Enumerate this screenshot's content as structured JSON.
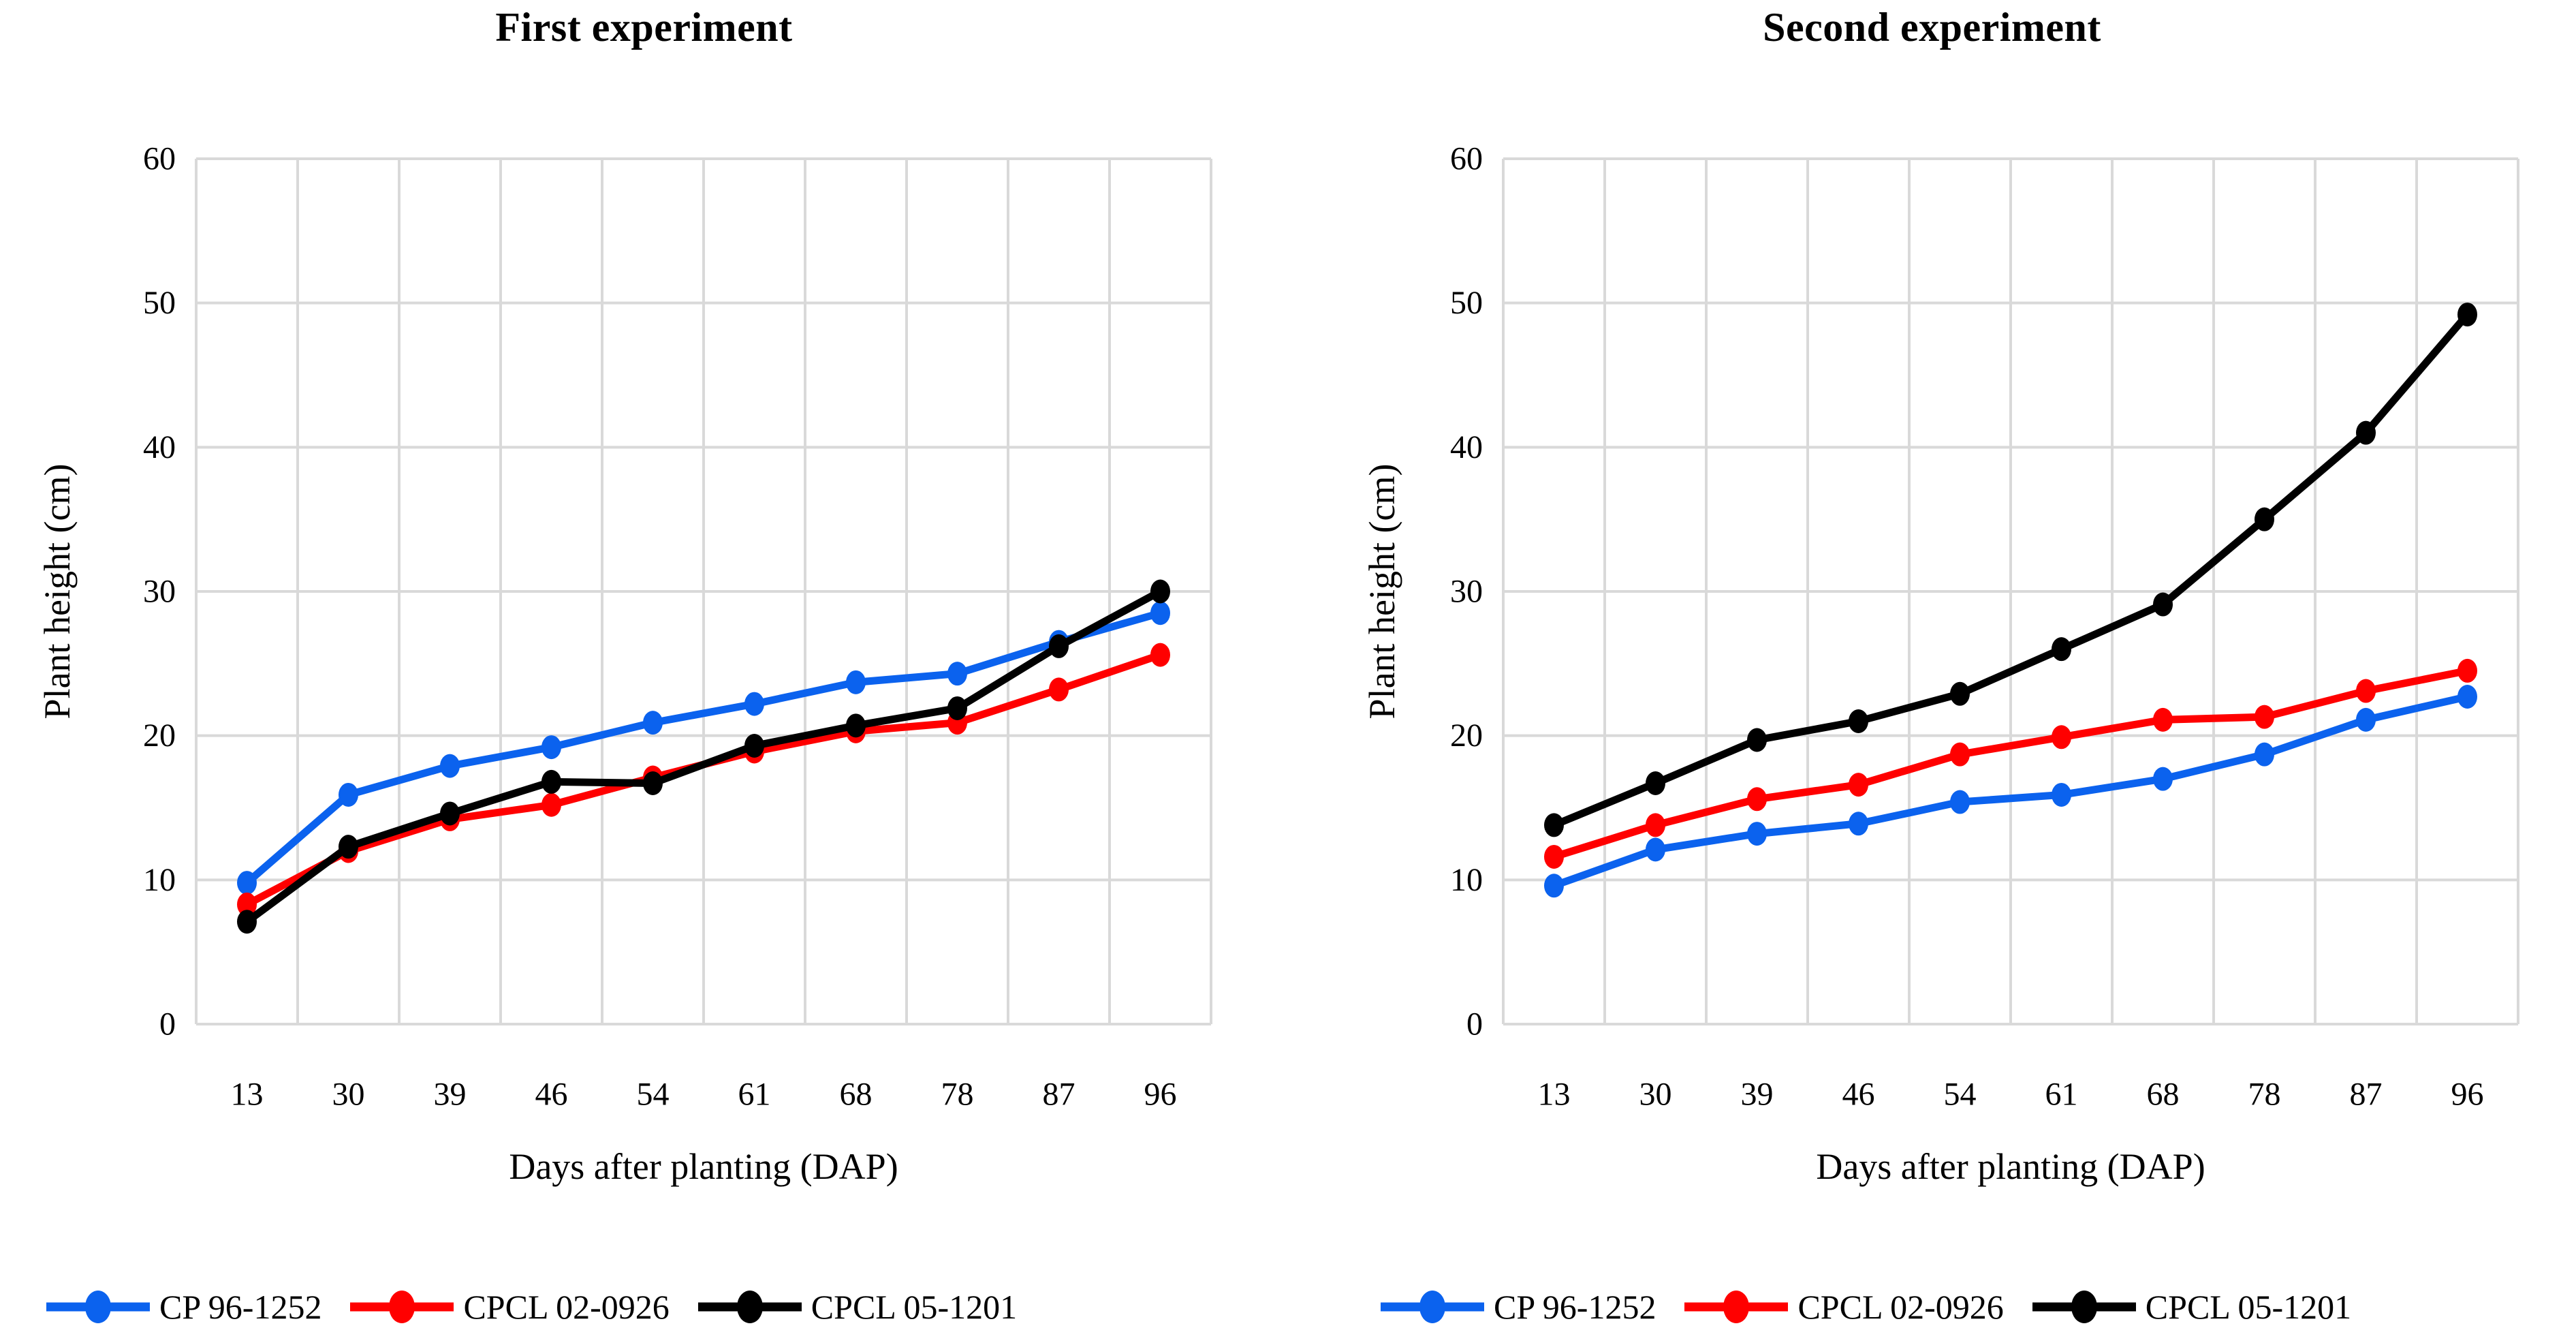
{
  "figure": {
    "background": "#ffffff",
    "gridline_color": "#d9d9d9",
    "text_color": "#000000"
  },
  "chart_data": [
    {
      "type": "line",
      "title": "First experiment",
      "xlabel": "Days after planting (DAP)",
      "ylabel": "Plant height (cm)",
      "categories": [
        "13",
        "30",
        "39",
        "46",
        "54",
        "61",
        "68",
        "78",
        "87",
        "96"
      ],
      "ylim": [
        0,
        60
      ],
      "ytick_step": 10,
      "yticks": [
        "0",
        "10",
        "20",
        "30",
        "40",
        "50",
        "60"
      ],
      "grid": "both",
      "legend_position": "bottom",
      "series": [
        {
          "name": "CP 96-1252",
          "color": "#0b62ee",
          "values": [
            9.8,
            15.9,
            17.9,
            19.2,
            20.9,
            22.2,
            23.7,
            24.3,
            26.5,
            28.5
          ]
        },
        {
          "name": "CPCL 02-0926",
          "color": "#ff0000",
          "values": [
            8.3,
            12.0,
            14.2,
            15.2,
            17.1,
            18.9,
            20.3,
            20.9,
            23.2,
            25.6
          ]
        },
        {
          "name": "CPCL 05-1201",
          "color": "#000000",
          "values": [
            7.1,
            12.3,
            14.6,
            16.8,
            16.7,
            19.3,
            20.7,
            21.9,
            26.2,
            30.0
          ]
        }
      ]
    },
    {
      "type": "line",
      "title": "Second experiment",
      "xlabel": "Days after planting (DAP)",
      "ylabel": "Plant height (cm)",
      "categories": [
        "13",
        "30",
        "39",
        "46",
        "54",
        "61",
        "68",
        "78",
        "87",
        "96"
      ],
      "ylim": [
        0,
        60
      ],
      "ytick_step": 10,
      "yticks": [
        "0",
        "10",
        "20",
        "30",
        "40",
        "50",
        "60"
      ],
      "grid": "both",
      "legend_position": "bottom",
      "series": [
        {
          "name": "CP 96-1252",
          "color": "#0b62ee",
          "values": [
            9.6,
            12.1,
            13.2,
            13.9,
            15.4,
            15.9,
            17.0,
            18.7,
            21.1,
            22.7
          ]
        },
        {
          "name": "CPCL 02-0926",
          "color": "#ff0000",
          "values": [
            11.6,
            13.8,
            15.6,
            16.6,
            18.7,
            19.9,
            21.1,
            21.3,
            23.1,
            24.5
          ]
        },
        {
          "name": "CPCL 05-1201",
          "color": "#000000",
          "values": [
            13.8,
            16.7,
            19.7,
            21.0,
            22.9,
            26.0,
            29.1,
            35.0,
            41.0,
            49.2
          ]
        }
      ]
    }
  ]
}
